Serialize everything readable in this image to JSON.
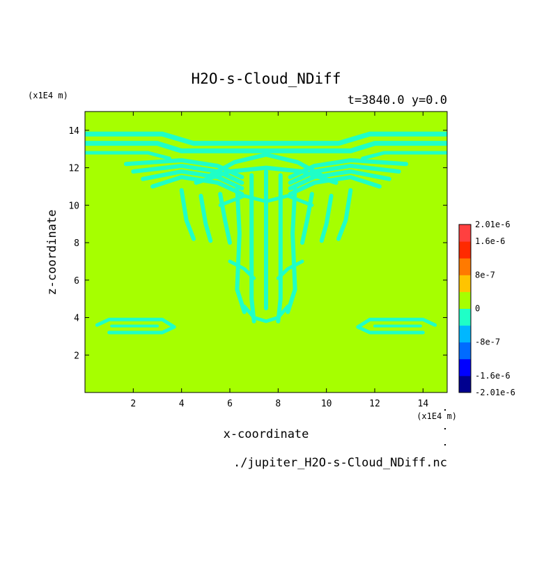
{
  "chart_data": {
    "type": "heatmap",
    "title": "H2O-s-Cloud_NDiff",
    "subtitle": "t=3840.0 y=0.0",
    "xlabel": "x-coordinate",
    "ylabel": "z-coordinate",
    "x_unit": "(x1E4 m)",
    "y_unit": "(x1E4 m)",
    "xlim": [
      0,
      15
    ],
    "ylim": [
      0,
      15
    ],
    "xticks": [
      2,
      4,
      6,
      8,
      10,
      12,
      14
    ],
    "yticks": [
      2,
      4,
      6,
      8,
      10,
      12,
      14
    ],
    "background_color": "#a6ff00",
    "feature_color": "#1fffc7",
    "feature_value": "-8e-7 to 0",
    "background_value": "0 to 8e-7",
    "colorbar": {
      "levels": [
        {
          "color": "#00008f"
        },
        {
          "color": "#0000ff"
        },
        {
          "color": "#006bff"
        },
        {
          "color": "#00b7ff"
        },
        {
          "color": "#1fffc7"
        },
        {
          "color": "#a6ff00"
        },
        {
          "color": "#ffc400"
        },
        {
          "color": "#ff7a00"
        },
        {
          "color": "#ff2a00"
        },
        {
          "color": "#ff4040"
        }
      ],
      "labels": [
        {
          "text": "2.01e-6",
          "pos": 10
        },
        {
          "text": "1.6e-6",
          "pos": 9
        },
        {
          "text": "8e-7",
          "pos": 7
        },
        {
          "text": "0",
          "pos": 5
        },
        {
          "text": "-8e-7",
          "pos": 3
        },
        {
          "text": "-1.6e-6",
          "pos": 1
        },
        {
          "text": "-2.01e-6",
          "pos": 0
        }
      ]
    },
    "source_file": "./jupiter_H2O-s-Cloud_NDiff.nc"
  }
}
